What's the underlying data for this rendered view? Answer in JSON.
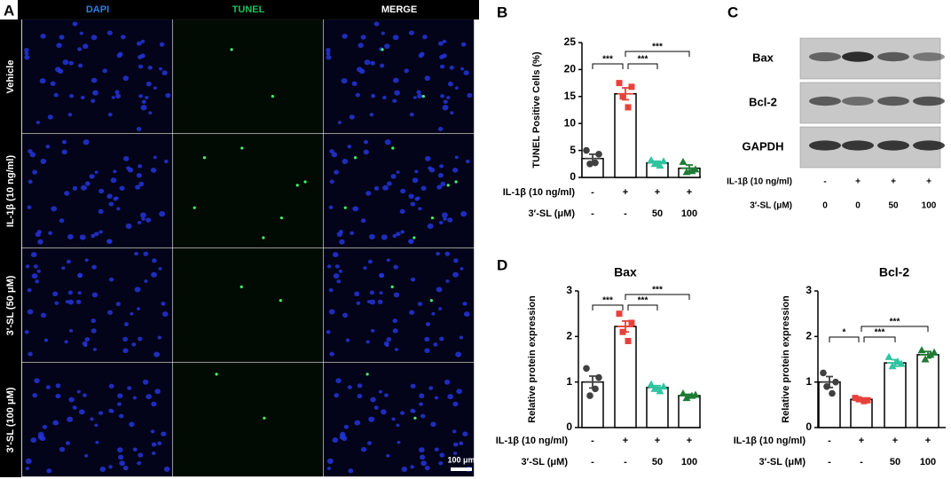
{
  "panel_letters": [
    "A",
    "B",
    "C",
    "D"
  ],
  "panel_a": {
    "columns": [
      "DAPI",
      "TUNEL",
      "MERGE"
    ],
    "rows": [
      "Vehicle",
      "IL-1β (10 ng/ml)",
      "3′-SL (50 μM)",
      "3′-SL (100 μM)"
    ],
    "scale_bar": "100 μm"
  },
  "panel_c": {
    "bands": [
      "Bax",
      "Bcl-2",
      "GAPDH"
    ],
    "treatments": [
      {
        "label": "IL-1β (10 ng/ml)",
        "cells": [
          "-",
          "+",
          "+",
          "+"
        ]
      },
      {
        "label": "3′-SL (μM)",
        "cells": [
          "0",
          "0",
          "50",
          "100"
        ]
      }
    ]
  },
  "chart_data": [
    {
      "type": "bar",
      "ylabel": "TUNEL Positive Cells (%)",
      "ylim": [
        0,
        25
      ],
      "yticks": [
        0,
        5,
        10,
        15,
        20,
        25
      ],
      "values": [
        3.5,
        15.5,
        2.7,
        1.7
      ],
      "errors": [
        0.8,
        1.1,
        0.3,
        0.6
      ],
      "points": [
        [
          5.0,
          4.3,
          2.5,
          2.7
        ],
        [
          17.5,
          16.8,
          15.0,
          13.0
        ],
        [
          3.2,
          3.0,
          2.5,
          2.2
        ],
        [
          2.9,
          1.5,
          1.0,
          1.2
        ]
      ],
      "colors": [
        "#404040",
        "#e8413c",
        "#2ec4a0",
        "#1e7b34"
      ],
      "markers": [
        "circle",
        "square",
        "triangle",
        "triangle"
      ],
      "annotations": [
        {
          "text": "***",
          "groups": [
            0,
            1
          ]
        },
        {
          "text": "***",
          "groups": [
            1,
            2
          ]
        },
        {
          "text": "***",
          "groups": [
            1,
            3
          ]
        }
      ],
      "treatments": [
        {
          "label": "IL-1β (10 ng/ml)",
          "cells": [
            "-",
            "+",
            "+",
            "+"
          ]
        },
        {
          "label": "3′-SL (μM)",
          "cells": [
            "-",
            "-",
            "50",
            "100"
          ]
        }
      ]
    },
    {
      "type": "bar",
      "title": "Bax",
      "ylabel": "Relative protein expression",
      "ylim": [
        0,
        3
      ],
      "yticks": [
        0,
        1,
        2,
        3
      ],
      "values": [
        1.0,
        2.22,
        0.88,
        0.7
      ],
      "errors": [
        0.13,
        0.12,
        0.04,
        0.03
      ],
      "points": [
        [
          1.3,
          1.1,
          0.7,
          0.85
        ],
        [
          2.5,
          2.3,
          2.1,
          1.9
        ],
        [
          0.95,
          0.9,
          0.85,
          0.8
        ],
        [
          0.75,
          0.72,
          0.65,
          0.7
        ]
      ],
      "colors": [
        "#404040",
        "#e8413c",
        "#2ec4a0",
        "#1e7b34"
      ],
      "markers": [
        "circle",
        "square",
        "triangle",
        "triangle"
      ],
      "annotations": [
        {
          "text": "***",
          "groups": [
            0,
            1
          ]
        },
        {
          "text": "***",
          "groups": [
            1,
            2
          ]
        },
        {
          "text": "***",
          "groups": [
            1,
            3
          ]
        }
      ],
      "treatments": [
        {
          "label": "IL-1β (10 ng/ml)",
          "cells": [
            "-",
            "+",
            "+",
            "+"
          ]
        },
        {
          "label": "3′-SL (μM)",
          "cells": [
            "-",
            "-",
            "50",
            "100"
          ]
        }
      ]
    },
    {
      "type": "bar",
      "title": "Bcl-2",
      "ylabel": "Relative protein expression",
      "ylim": [
        0,
        3
      ],
      "yticks": [
        0,
        1,
        2,
        3
      ],
      "values": [
        1.0,
        0.62,
        1.42,
        1.6
      ],
      "errors": [
        0.12,
        0.03,
        0.07,
        0.07
      ],
      "points": [
        [
          1.2,
          1.0,
          0.9,
          0.75
        ],
        [
          0.65,
          0.6,
          0.62,
          0.58
        ],
        [
          1.55,
          1.4,
          1.35,
          1.45
        ],
        [
          1.7,
          1.65,
          1.5,
          1.6
        ]
      ],
      "colors": [
        "#404040",
        "#e8413c",
        "#2ec4a0",
        "#1e7b34"
      ],
      "markers": [
        "circle",
        "square",
        "triangle",
        "triangle"
      ],
      "annotations": [
        {
          "text": "*",
          "groups": [
            0,
            1
          ]
        },
        {
          "text": "***",
          "groups": [
            1,
            2
          ]
        },
        {
          "text": "***",
          "groups": [
            1,
            3
          ]
        }
      ],
      "treatments": [
        {
          "label": "IL-1β (10 ng/ml)",
          "cells": [
            "-",
            "+",
            "+",
            "+"
          ]
        },
        {
          "label": "3′-SL (μM)",
          "cells": [
            "-",
            "-",
            "50",
            "100"
          ]
        }
      ]
    }
  ]
}
